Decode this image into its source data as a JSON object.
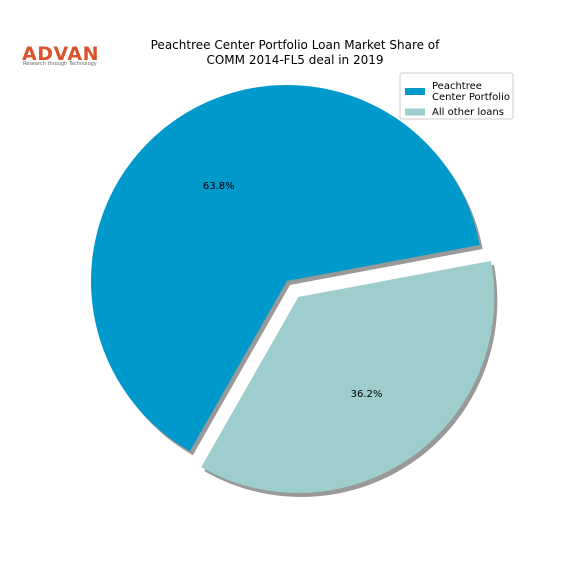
{
  "logo": {
    "name": "ADVAN",
    "tagline": "Research through Technology"
  },
  "chart_data": {
    "type": "pie",
    "title": [
      "Peachtree Center Portfolio Loan Market Share of",
      "COMM 2014-FL5 deal in 2019"
    ],
    "categories": [
      "Peachtree\nCenter Portfolio",
      "All other loans"
    ],
    "values": [
      63.8,
      36.2
    ],
    "value_labels": [
      "63.8%",
      "36.2%"
    ],
    "colors": [
      "#0099cc",
      "#9ecdcd"
    ],
    "legend": "upper right"
  }
}
